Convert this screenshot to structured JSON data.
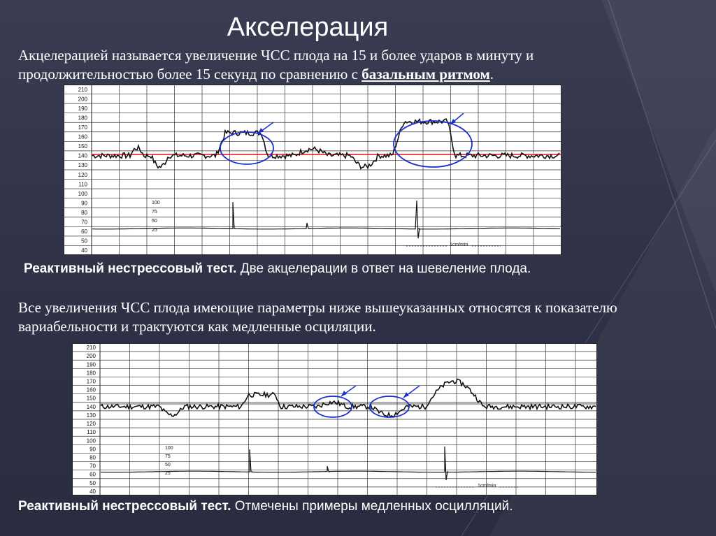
{
  "slide": {
    "title": "Акселерация",
    "definition_part1": "Акцелерацией называется увеличение ЧСС плода на 15 и более ударов в минуту и продолжительностью более 15 секунд по сравнению с ",
    "definition_term": "базальным ритмом",
    "definition_end": ".",
    "caption1_bold": "Реактивный нестрессовый тест.",
    "caption1_text": " Две акцелерации в ответ на шевеление плода.",
    "paragraph2": "Все увеличения ЧСС плода имеющие параметры ниже вышеуказанных относятся к показателю вариабельности и трактуются как медленные осциляции.",
    "caption2_bold": "Реактивный нестрессовый тест.",
    "caption2_text": " Отмечены примеры медленных осцилляций."
  },
  "ctg_chart_1": {
    "y_labels": [
      "210",
      "200",
      "190",
      "180",
      "170",
      "160",
      "150",
      "140",
      "130",
      "120",
      "110",
      "100",
      "90",
      "80",
      "70",
      "60",
      "50",
      "40"
    ],
    "scale_labels": [
      "100",
      "75",
      "50",
      "25"
    ],
    "speed_label": "1cm/min"
  },
  "ctg_chart_2": {
    "y_labels": [
      "210",
      "200",
      "190",
      "180",
      "170",
      "160",
      "150",
      "140",
      "130",
      "120",
      "110",
      "100",
      "90",
      "80",
      "70",
      "60",
      "50",
      "40"
    ],
    "scale_labels": [
      "100",
      "75",
      "50",
      "25"
    ],
    "speed_label": "1cm/min"
  },
  "colors": {
    "baseline": "#e01010",
    "annotation": "#1a2fd0",
    "trace": "#111111",
    "grid": "#222222"
  }
}
